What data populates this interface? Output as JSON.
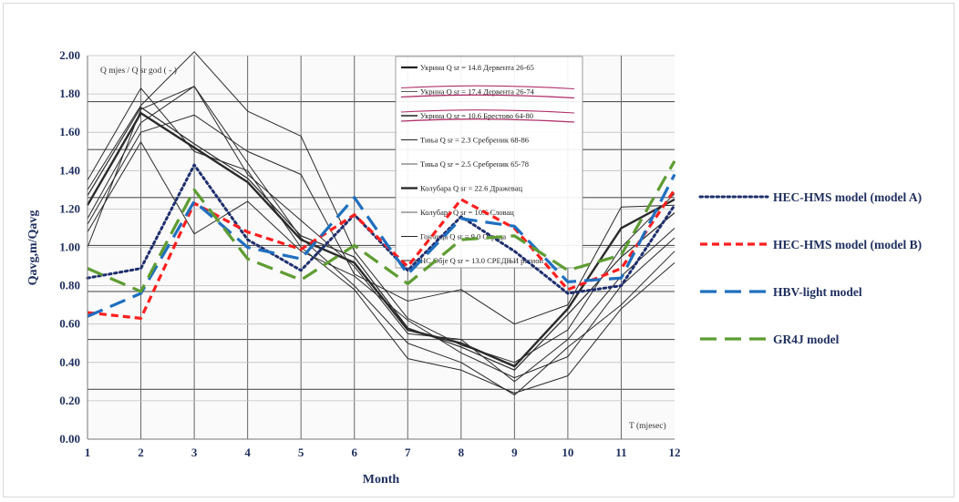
{
  "chart_data": {
    "type": "line",
    "xlabel": "Month",
    "ylabel": "Qavg,m/Qavg",
    "categories": [
      1,
      2,
      3,
      4,
      5,
      6,
      7,
      8,
      9,
      10,
      11,
      12
    ],
    "xlim": [
      1,
      12
    ],
    "ylim": [
      0,
      2
    ],
    "y_ticks": [
      "0.00",
      "0.20",
      "0.40",
      "0.60",
      "0.80",
      "1.00",
      "1.20",
      "1.40",
      "1.60",
      "1.80",
      "2.00"
    ],
    "x_ticks": [
      "1",
      "2",
      "3",
      "4",
      "5",
      "6",
      "7",
      "8",
      "9",
      "10",
      "11",
      "12"
    ],
    "grid": true,
    "legend_position": "right",
    "series": [
      {
        "name": "HEC-HMS model (model A)",
        "color": "#1f2f6e",
        "style": "dotted",
        "values": [
          0.84,
          0.89,
          1.43,
          1.04,
          0.88,
          1.17,
          0.88,
          1.16,
          0.98,
          0.76,
          0.8,
          1.22
        ]
      },
      {
        "name": "HEC-HMS model (model B)",
        "color": "#ff1f1f",
        "style": "dashed",
        "values": [
          0.66,
          0.63,
          1.23,
          1.08,
          0.99,
          1.17,
          0.9,
          1.25,
          1.1,
          0.78,
          0.89,
          1.3
        ]
      },
      {
        "name": "HBV-light model",
        "color": "#1f6fbf",
        "style": "longdash",
        "values": [
          0.64,
          0.76,
          1.24,
          1.0,
          0.94,
          1.26,
          0.86,
          1.15,
          1.11,
          0.82,
          0.84,
          1.38
        ]
      },
      {
        "name": "GR4J model",
        "color": "#5e9c32",
        "style": "longdash",
        "values": [
          0.89,
          0.77,
          1.3,
          0.94,
          0.83,
          1.01,
          0.81,
          1.04,
          1.06,
          0.88,
          0.96,
          1.45
        ]
      }
    ],
    "background_series": [
      {
        "values": [
          1.22,
          1.7,
          1.52,
          1.34,
          1.04,
          0.92,
          0.57,
          0.5,
          0.38,
          0.68,
          1.1,
          1.25
        ],
        "weight": 2.4
      },
      {
        "values": [
          1.27,
          1.73,
          1.54,
          1.36,
          1.06,
          0.95,
          0.58,
          0.48,
          0.36,
          0.65,
          0.95,
          1.18
        ],
        "weight": 1.2
      },
      {
        "values": [
          1.0,
          1.72,
          1.84,
          1.44,
          1.05,
          0.8,
          0.5,
          0.4,
          0.23,
          0.48,
          0.7,
          0.98
        ],
        "weight": 1.0
      },
      {
        "values": [
          1.35,
          1.83,
          1.5,
          1.4,
          1.0,
          0.78,
          0.42,
          0.36,
          0.24,
          0.33,
          0.68,
          0.92
        ],
        "weight": 1.0
      },
      {
        "values": [
          1.08,
          1.55,
          1.07,
          1.24,
          0.98,
          0.85,
          0.62,
          0.45,
          0.32,
          0.43,
          0.8,
          1.05
        ],
        "weight": 1.0
      },
      {
        "values": [
          1.12,
          1.6,
          1.69,
          1.5,
          1.38,
          0.86,
          0.72,
          0.78,
          0.6,
          0.7,
          1.21,
          1.22
        ],
        "weight": 1.0
      },
      {
        "values": [
          1.3,
          1.74,
          2.02,
          1.71,
          1.58,
          0.98,
          0.63,
          0.49,
          0.4,
          0.57,
          1.0,
          1.28
        ],
        "weight": 1.0
      },
      {
        "values": [
          1.15,
          1.65,
          1.84,
          1.38,
          1.14,
          0.9,
          0.55,
          0.52,
          0.3,
          0.52,
          0.85,
          1.1
        ],
        "weight": 1.0
      }
    ],
    "scan_overlay": {
      "top_label": "Q mjes  / Q sr god ( - )",
      "bottom_label": "T (mjesec)",
      "entries": [
        {
          "text": "Укрина  Q sr =  14.8   Дервента 26-65",
          "weight": 2.2
        },
        {
          "text": "Укрина  Q sr =  17.4   Дервента 26-74",
          "weight": 0.8
        },
        {
          "text": "Укрина  Q sr =  10.6   Брестово 64-80",
          "weight": 1.4
        },
        {
          "text": "Тиња  Q sr =  2.3   Сребреник 68-86",
          "weight": 1.0
        },
        {
          "text": "Тиња Q sr =  2.5   Сребреник 65-78",
          "weight": 0.8
        },
        {
          "text": "Колубара  Q sr =  22.6   Дражевац",
          "weight": 2.2
        },
        {
          "text": "Колубара Q sr =  10.6   Словац",
          "weight": 0.8
        },
        {
          "text": "Гончица  Q sr =  9.0   Ограда",
          "weight": 1.0
        },
        {
          "text": "НС Обје Q sr =  13.0   СРЕДЊИ регион",
          "weight": 1.0
        }
      ],
      "strikethrough_color": "#b0306a"
    }
  }
}
